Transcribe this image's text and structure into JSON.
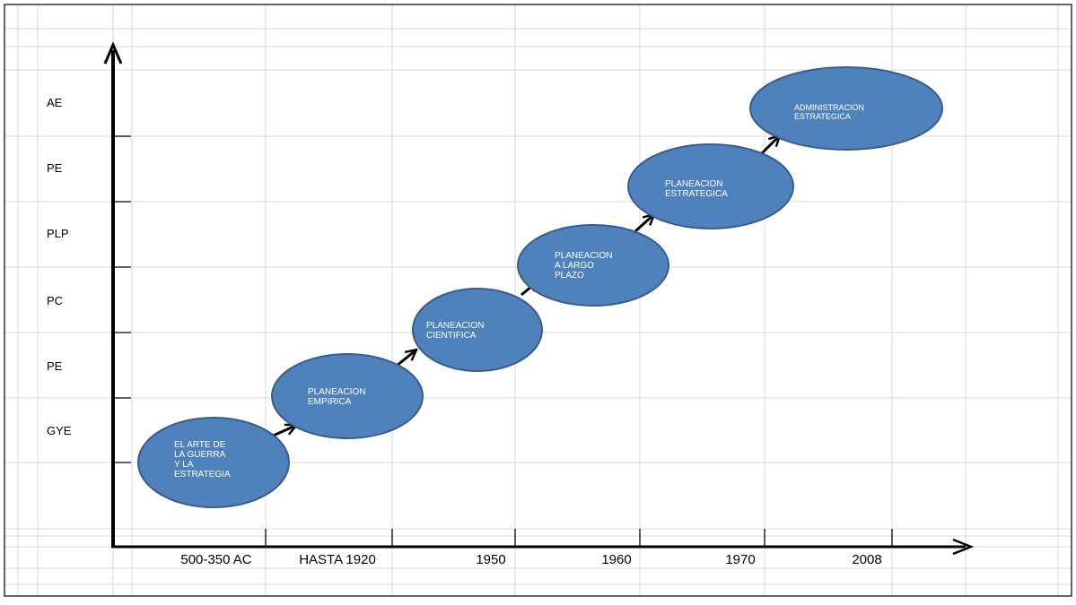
{
  "y_axis_labels": [
    "AE",
    "PE",
    "PLP",
    "PC",
    "PE",
    "GYE"
  ],
  "x_axis_labels": [
    "500-350 AC",
    "HASTA 1920",
    "1950",
    "1960",
    "1970",
    "2008"
  ],
  "stages": [
    {
      "lines": [
        "EL ARTE DE",
        "LA GUERRA",
        "Y LA",
        "ESTRATEGIA"
      ]
    },
    {
      "lines": [
        "PLANEACION",
        "EMPIRICA"
      ]
    },
    {
      "lines": [
        "PLANEACION",
        "CIENTIFICA"
      ]
    },
    {
      "lines": [
        "PLANEACION",
        "A LARGO",
        "PLAZO"
      ]
    },
    {
      "lines": [
        "PLANEACION",
        "ESTRATEGICA"
      ]
    },
    {
      "lines": [
        "ADMINISTRACION",
        "ESTRATEGICA"
      ]
    }
  ],
  "colors": {
    "ellipse_fill": "#4f81bd",
    "ellipse_stroke": "#385d8a",
    "grid": "#d9d9d9",
    "axis": "#000000"
  }
}
